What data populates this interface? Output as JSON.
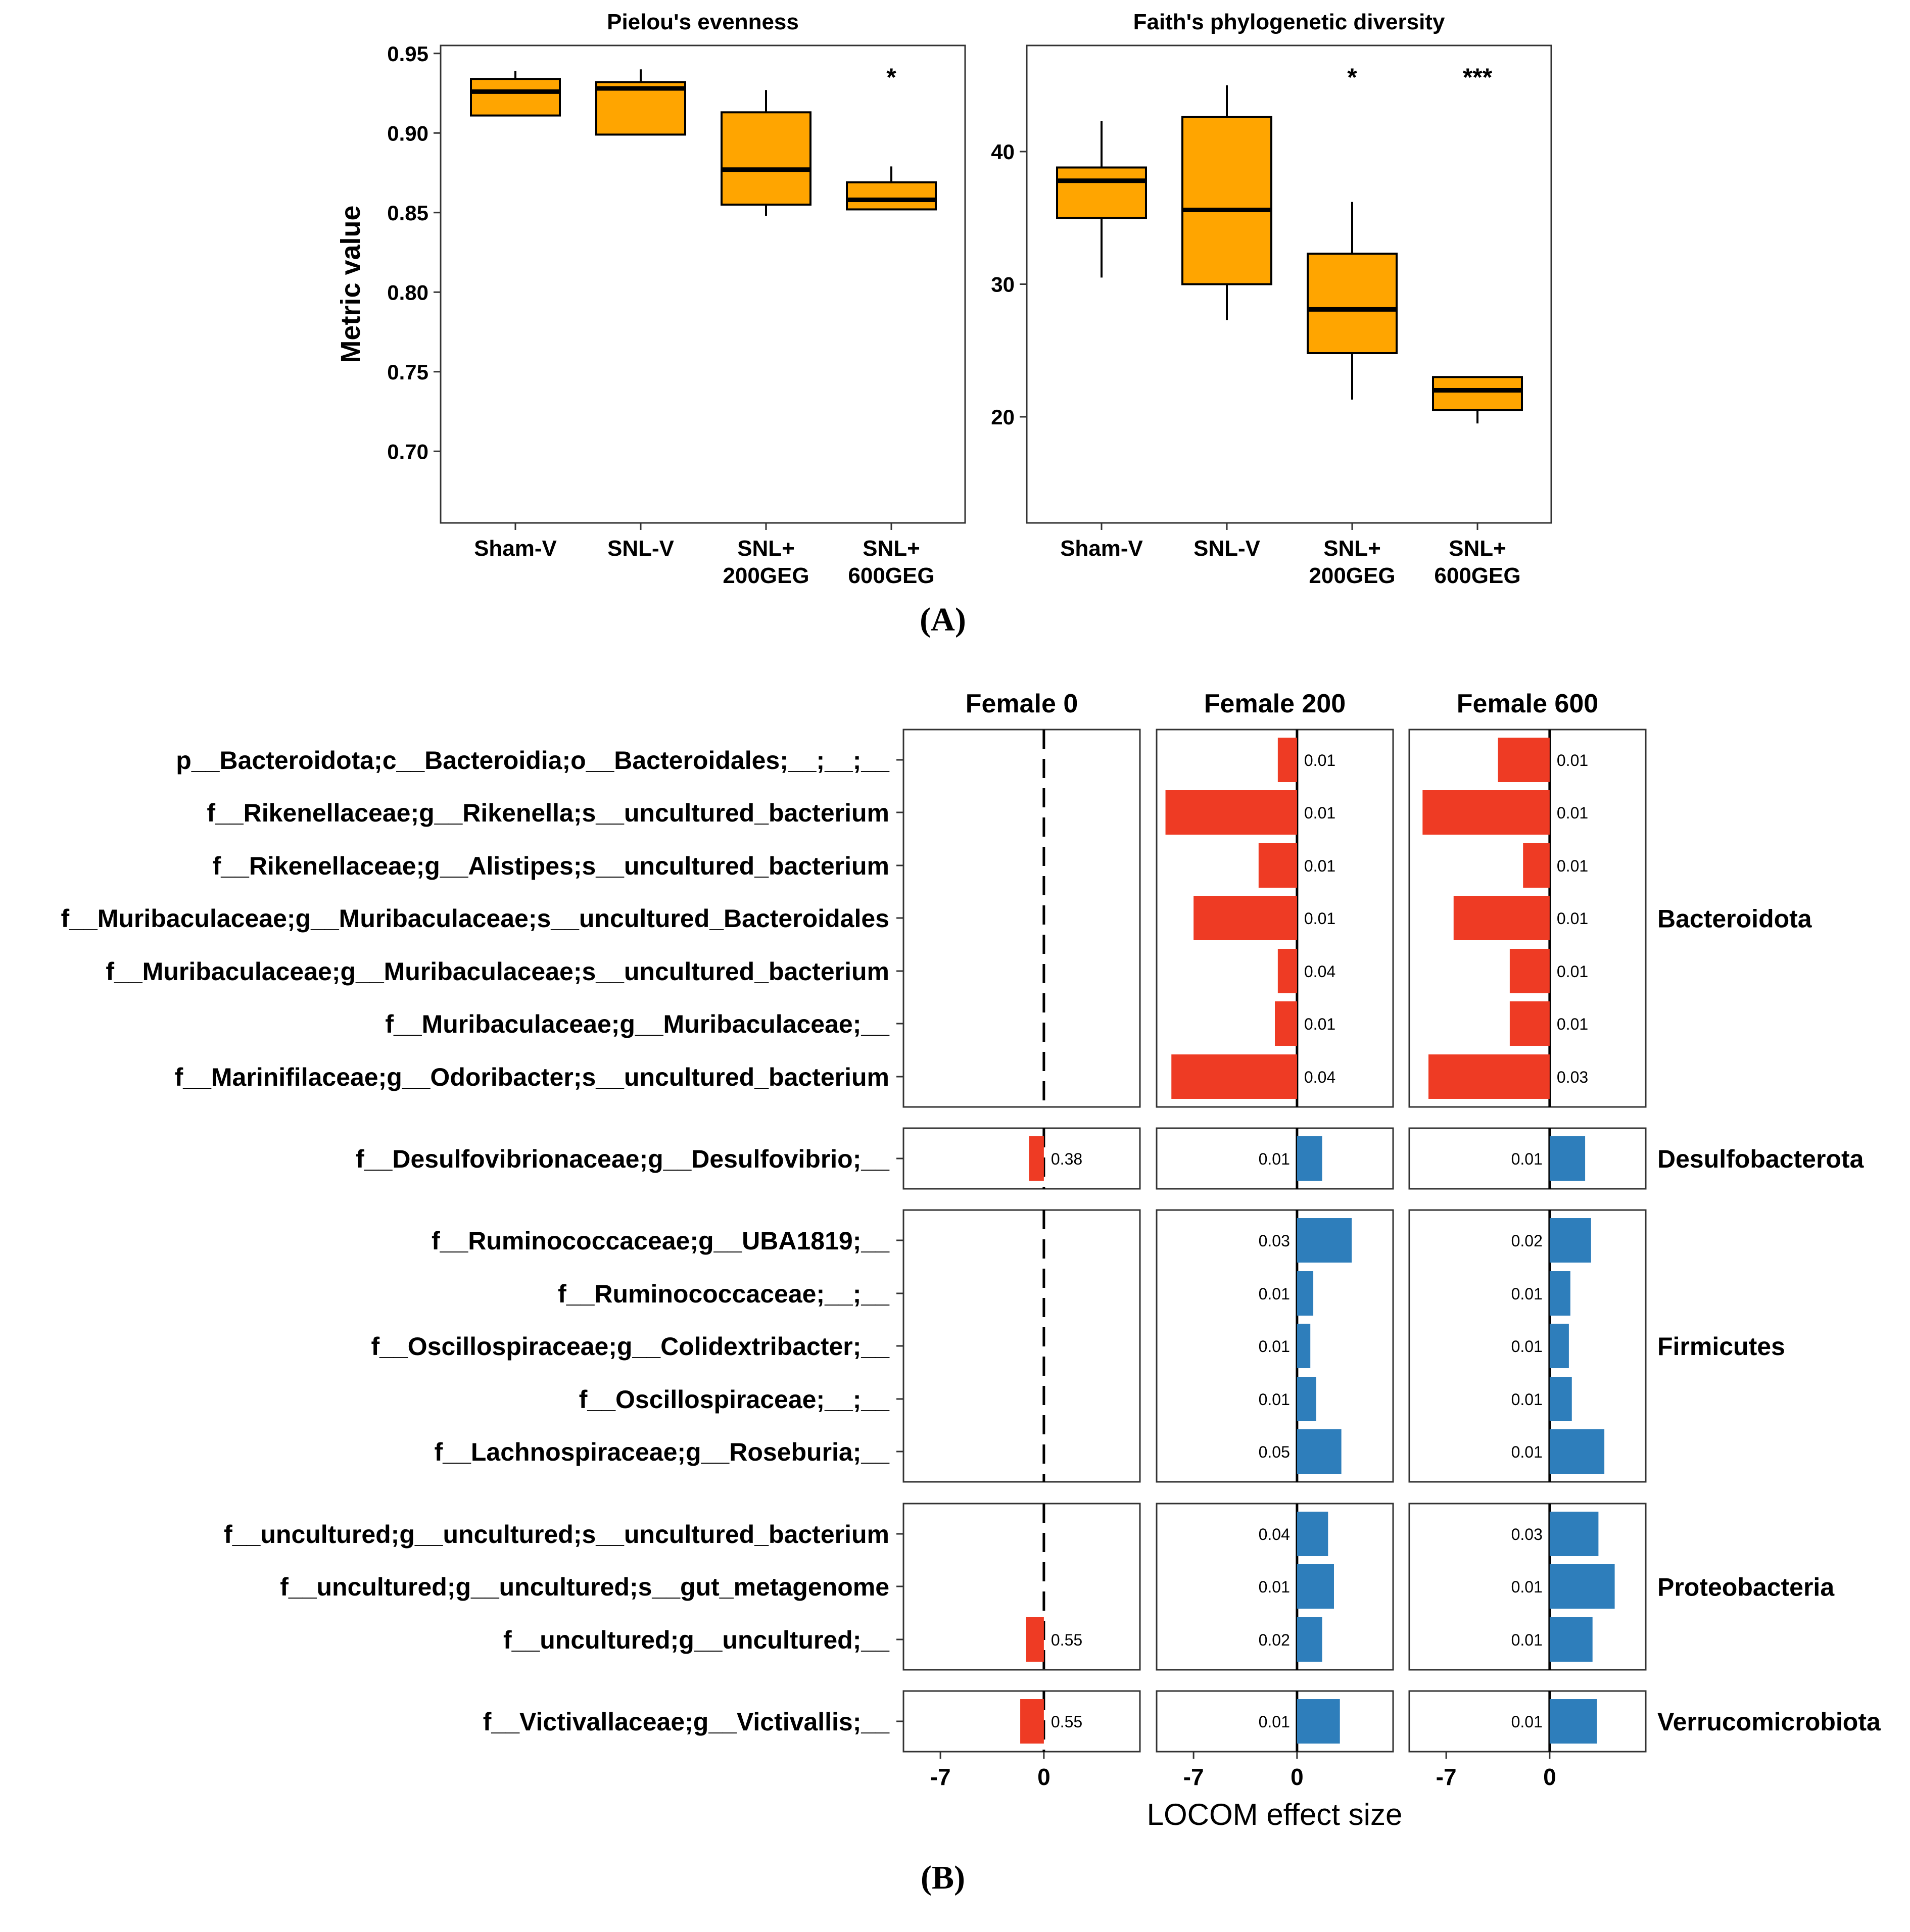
{
  "panel_a_label": "A",
  "panel_b_label": "B",
  "chart_data": [
    {
      "type": "box",
      "title": "Pielou's evenness",
      "ylabel": "Metric value",
      "ylim": [
        0.655,
        0.955
      ],
      "yticks": [
        "0.70",
        "0.75",
        "0.80",
        "0.85",
        "0.90",
        "0.95"
      ],
      "categories": [
        "Sham-V",
        "SNL-V",
        "SNL+\n200GEG",
        "SNL+\n600GEG"
      ],
      "boxes": [
        {
          "group": "Sham-V",
          "whisker_low": 0.911,
          "q1": 0.911,
          "median": 0.926,
          "q3": 0.934,
          "whisker_high": 0.939
        },
        {
          "group": "SNL-V",
          "whisker_low": 0.899,
          "q1": 0.899,
          "median": 0.928,
          "q3": 0.932,
          "whisker_high": 0.94
        },
        {
          "group": "SNL+ 200GEG",
          "whisker_low": 0.848,
          "q1": 0.855,
          "median": 0.877,
          "q3": 0.913,
          "whisker_high": 0.927
        },
        {
          "group": "SNL+ 600GEG",
          "whisker_low": 0.852,
          "q1": 0.852,
          "median": 0.858,
          "q3": 0.869,
          "whisker_high": 0.879
        }
      ],
      "significance": [
        "",
        "",
        "",
        "*"
      ],
      "color": "#FFA500"
    },
    {
      "type": "box",
      "title": "Faith's phylogenetic diversity",
      "ylabel": "",
      "ylim": [
        12,
        48
      ],
      "yticks": [
        "20",
        "30",
        "40"
      ],
      "categories": [
        "Sham-V",
        "SNL-V",
        "SNL+\n200GEG",
        "SNL+\n600GEG"
      ],
      "boxes": [
        {
          "group": "Sham-V",
          "whisker_low": 30.5,
          "q1": 35.0,
          "median": 37.8,
          "q3": 38.8,
          "whisker_high": 42.3
        },
        {
          "group": "SNL-V",
          "whisker_low": 27.3,
          "q1": 30.0,
          "median": 35.6,
          "q3": 42.6,
          "whisker_high": 45.0
        },
        {
          "group": "SNL+ 200GEG",
          "whisker_low": 21.3,
          "q1": 24.8,
          "median": 28.1,
          "q3": 32.3,
          "whisker_high": 36.2
        },
        {
          "group": "SNL+ 600GEG",
          "whisker_low": 19.5,
          "q1": 20.5,
          "median": 22.0,
          "q3": 23.0,
          "whisker_high": 23.0
        }
      ],
      "significance": [
        "",
        "",
        "*",
        "***"
      ],
      "color": "#FFA500"
    },
    {
      "type": "bar",
      "orientation": "horizontal",
      "xlabel": "LOCOM effect size",
      "xlim": [
        -9.5,
        6.5
      ],
      "xticks": [
        "-7",
        "0"
      ],
      "neg_color": "#EE3B24",
      "pos_color": "#2E7EBB",
      "columns": [
        "Female 0",
        "Female 200",
        "Female 600"
      ],
      "groups": [
        {
          "phylum": "Bacteroidota",
          "taxa": [
            "p__Bacteroidota;c__Bacteroidia;o__Bacteroidales;__;__;__",
            "f__Rikenellaceae;g__Rikenella;s__uncultured_bacterium",
            "f__Rikenellaceae;g__Alistipes;s__uncultured_bacterium",
            "f__Muribaculaceae;g__Muribaculaceae;s__uncultured_Bacteroidales",
            "f__Muribaculaceae;g__Muribaculaceae;s__uncultured_bacterium",
            "f__Muribaculaceae;g__Muribaculaceae;__",
            "f__Marinifilaceae;g__Odoribacter;s__uncultured_bacterium"
          ],
          "effects": [
            [
              null,
              -1.3,
              -3.5
            ],
            [
              null,
              -8.9,
              -8.6
            ],
            [
              null,
              -2.6,
              -1.8
            ],
            [
              null,
              -7.0,
              -6.5
            ],
            [
              null,
              -1.3,
              -2.7
            ],
            [
              null,
              -1.5,
              -2.7
            ],
            [
              null,
              -8.5,
              -8.2
            ]
          ],
          "pvalues": [
            [
              "",
              "0.01",
              "0.01"
            ],
            [
              "",
              "0.01",
              "0.01"
            ],
            [
              "",
              "0.01",
              "0.01"
            ],
            [
              "",
              "0.01",
              "0.01"
            ],
            [
              "",
              "0.04",
              "0.01"
            ],
            [
              "",
              "0.01",
              "0.01"
            ],
            [
              "",
              "0.04",
              "0.03"
            ]
          ]
        },
        {
          "phylum": "Desulfobacterota",
          "taxa": [
            "f__Desulfovibrionaceae;g__Desulfovibrio;__"
          ],
          "effects": [
            [
              -1.0,
              1.7,
              2.4
            ]
          ],
          "pvalues": [
            [
              "0.38",
              "0.01",
              "0.01"
            ]
          ]
        },
        {
          "phylum": "Firmicutes",
          "taxa": [
            "f__Ruminococcaceae;g__UBA1819;__",
            "f__Ruminococcaceae;__;__",
            "f__Oscillospiraceae;g__Colidextribacter;__",
            "f__Oscillospiraceae;__;__",
            "f__Lachnospiraceae;g__Roseburia;__"
          ],
          "effects": [
            [
              null,
              3.7,
              2.8
            ],
            [
              null,
              1.1,
              1.4
            ],
            [
              null,
              0.9,
              1.3
            ],
            [
              null,
              1.3,
              1.5
            ],
            [
              null,
              3.0,
              3.7
            ]
          ],
          "pvalues": [
            [
              "",
              "0.03",
              "0.02"
            ],
            [
              "",
              "0.01",
              "0.01"
            ],
            [
              "",
              "0.01",
              "0.01"
            ],
            [
              "",
              "0.01",
              "0.01"
            ],
            [
              "",
              "0.05",
              "0.01"
            ]
          ]
        },
        {
          "phylum": "Proteobacteria",
          "taxa": [
            "f__uncultured;g__uncultured;s__uncultured_bacterium",
            "f__uncultured;g__uncultured;s__gut_metagenome",
            "f__uncultured;g__uncultured;__"
          ],
          "effects": [
            [
              null,
              2.1,
              3.3
            ],
            [
              null,
              2.5,
              4.4
            ],
            [
              -1.2,
              1.7,
              2.9
            ]
          ],
          "pvalues": [
            [
              "",
              "0.04",
              "0.03"
            ],
            [
              "",
              "0.01",
              "0.01"
            ],
            [
              "0.55",
              "0.02",
              "0.01"
            ]
          ]
        },
        {
          "phylum": "Verrucomicrobiota",
          "taxa": [
            "f__Victivallaceae;g__Victivallis;__"
          ],
          "effects": [
            [
              -1.6,
              2.9,
              3.2
            ]
          ],
          "pvalues": [
            [
              "0.55",
              "0.01",
              "0.01"
            ]
          ]
        }
      ]
    }
  ]
}
